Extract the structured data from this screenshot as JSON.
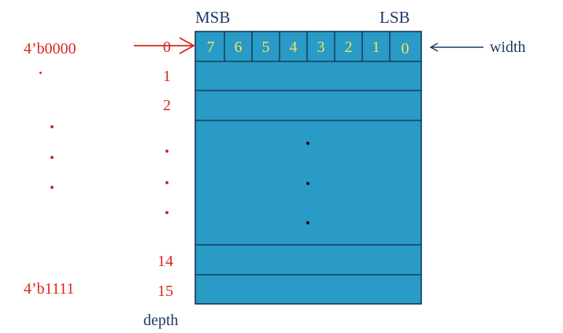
{
  "header": {
    "msb": "MSB",
    "lsb": "LSB"
  },
  "bits": [
    "7",
    "6",
    "5",
    "4",
    "3",
    "2",
    "1",
    "0"
  ],
  "row_numbers": {
    "first": [
      "0",
      "1",
      "2"
    ],
    "last": [
      "14",
      "15"
    ]
  },
  "addresses": {
    "first": "4’b0000",
    "last": "4’b1111"
  },
  "labels": {
    "width": "width",
    "depth": "depth"
  },
  "colors": {
    "memory_fill": "#2a9ac6",
    "border": "#0f2f48",
    "bit_text": "#f2e65a",
    "accent_red": "#d9271e",
    "text_blue": "#1f3a6b"
  }
}
